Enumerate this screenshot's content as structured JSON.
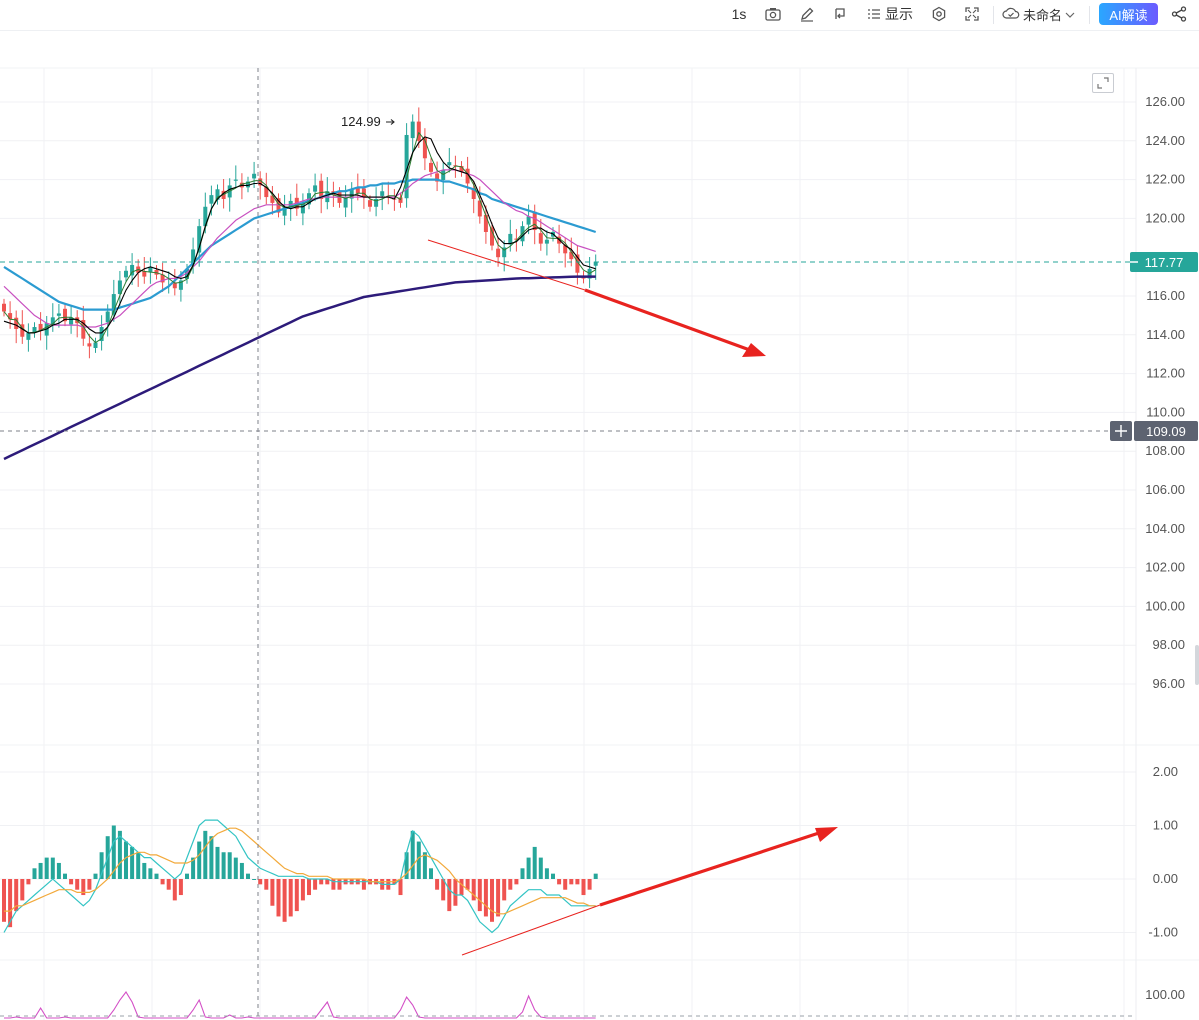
{
  "toolbar": {
    "interval_label": "1s",
    "display_label": "显示",
    "name_label": "未命名",
    "ai_label": "AI解读",
    "icons": [
      "camera-icon",
      "pen-icon",
      "replay-icon",
      "list-icon",
      "gear-icon",
      "fullscreen-icon",
      "cloud-icon",
      "chevron-down-icon",
      "share-icon"
    ]
  },
  "price_axis": {
    "ticks": [
      "126.00",
      "124.00",
      "122.00",
      "120.00",
      "116.00",
      "114.00",
      "112.00",
      "110.00",
      "108.00",
      "106.00",
      "104.00",
      "102.00",
      "100.00",
      "98.00",
      "96.00"
    ],
    "tick_values": [
      126,
      124,
      122,
      120,
      116,
      114,
      112,
      110,
      108,
      106,
      104,
      102,
      100,
      98,
      96
    ],
    "current_price": "117.77",
    "crosshair_price": "109.09",
    "high_marker": "124.99"
  },
  "macd_axis": {
    "ticks": [
      "2.00",
      "1.00",
      "0.00",
      "-1.00"
    ],
    "tick_values": [
      2,
      1,
      0,
      -1
    ]
  },
  "third_axis": {
    "ticks": [
      "100.00"
    ]
  },
  "colors": {
    "up": "#26a69a",
    "down": "#ef5350",
    "ma5": "#000000",
    "ma10": "#2e7d32",
    "ma20": "#c850c0",
    "ma60": "#2b9bd1",
    "ma250": "#2d1b7a",
    "dif": "#33c4c4",
    "dea": "#f2a93b",
    "annotation": "#e8231f",
    "current_line": "#26a69a",
    "crosshair": "#7d808a"
  },
  "chart_data": {
    "type": "candlestick",
    "price_range": [
      94,
      127
    ],
    "macd_range": [
      -1.5,
      2.5
    ],
    "closes": [
      115.2,
      114.8,
      114.3,
      113.9,
      114.1,
      114.4,
      114.2,
      114.6,
      114.9,
      115.1,
      114.7,
      114.9,
      114.6,
      113.8,
      113.4,
      113.6,
      114.4,
      115.2,
      116.1,
      116.8,
      117.3,
      117.6,
      117.2,
      117.0,
      117.5,
      117.1,
      116.7,
      116.9,
      116.4,
      116.8,
      117.4,
      118.4,
      119.6,
      120.6,
      121.2,
      121.5,
      121.0,
      121.7,
      122.0,
      121.6,
      121.9,
      122.3,
      121.7,
      121.1,
      120.8,
      120.3,
      120.6,
      120.9,
      120.5,
      120.8,
      121.3,
      121.7,
      121.0,
      121.4,
      121.2,
      120.8,
      121.1,
      121.5,
      121.3,
      121.1,
      120.6,
      121.0,
      121.4,
      121.1,
      121.0,
      120.8,
      124.3,
      124.99,
      124.0,
      123.1,
      122.4,
      121.9,
      122.5,
      122.9,
      122.7,
      122.4,
      121.8,
      121.0,
      120.1,
      119.3,
      118.6,
      118.0,
      118.5,
      119.2,
      118.9,
      119.6,
      120.1,
      119.4,
      118.7,
      118.9,
      119.3,
      118.7,
      118.2,
      117.9,
      117.2,
      116.9,
      117.4,
      117.77
    ],
    "ma5": [
      114.7,
      114.6,
      114.5,
      114.3,
      114.1,
      114.1,
      114.2,
      114.3,
      114.5,
      114.6,
      114.8,
      114.8,
      114.8,
      114.6,
      114.3,
      114.1,
      114.1,
      114.4,
      114.9,
      115.6,
      116.3,
      116.8,
      117.2,
      117.4,
      117.5,
      117.4,
      117.3,
      117.2,
      117.0,
      116.9,
      117.0,
      117.6,
      118.5,
      119.6,
      120.5,
      121.0,
      121.3,
      121.5,
      121.6,
      121.7,
      121.7,
      121.8,
      121.8,
      121.6,
      121.3,
      120.9,
      120.6,
      120.5,
      120.6,
      120.6,
      120.8,
      121.0,
      121.1,
      121.2,
      121.3,
      121.2,
      121.2,
      121.2,
      121.2,
      121.1,
      121.1,
      121.1,
      121.1,
      121.1,
      121.0,
      121.6,
      122.5,
      123.4,
      123.9,
      124.2,
      124.1,
      123.4,
      122.9,
      122.6,
      122.5,
      122.4,
      122.3,
      121.9,
      121.2,
      120.5,
      119.7,
      119.0,
      118.7,
      118.7,
      118.8,
      119.1,
      119.4,
      119.5,
      119.5,
      119.3,
      119.2,
      118.9,
      118.6,
      118.4,
      118.0,
      117.6,
      117.5,
      117.4
    ],
    "ma20": [
      116.5,
      116.2,
      115.9,
      115.6,
      115.3,
      115.0,
      114.8,
      114.6,
      114.5,
      114.5,
      114.5,
      114.5,
      114.5,
      114.4,
      114.4,
      114.4,
      114.5,
      114.6,
      114.8,
      115.0,
      115.3,
      115.6,
      115.9,
      116.2,
      116.5,
      116.7,
      116.8,
      116.9,
      116.9,
      117.0,
      117.2,
      117.5,
      117.8,
      118.2,
      118.6,
      119.0,
      119.3,
      119.6,
      119.9,
      120.1,
      120.3,
      120.5,
      120.6,
      120.7,
      120.7,
      120.7,
      120.7,
      120.7,
      120.8,
      120.9,
      121.0,
      121.0,
      121.1,
      121.1,
      121.1,
      121.1,
      121.1,
      121.1,
      121.1,
      121.1,
      121.1,
      121.1,
      121.1,
      121.1,
      121.1,
      121.3,
      121.5,
      121.8,
      122.0,
      122.2,
      122.3,
      122.4,
      122.5,
      122.5,
      122.5,
      122.4,
      122.3,
      122.2,
      122.0,
      121.7,
      121.4,
      121.1,
      120.8,
      120.6,
      120.4,
      120.3,
      120.1,
      120.0,
      119.8,
      119.6,
      119.4,
      119.2,
      119.0,
      118.8,
      118.6,
      118.5,
      118.4,
      118.3
    ],
    "ma60": [
      117.5,
      117.3,
      117.1,
      116.9,
      116.7,
      116.5,
      116.3,
      116.1,
      115.9,
      115.7,
      115.6,
      115.5,
      115.4,
      115.3,
      115.3,
      115.3,
      115.3,
      115.3,
      115.3,
      115.4,
      115.5,
      115.6,
      115.7,
      115.8,
      115.9,
      116.1,
      116.3,
      116.5,
      116.8,
      117.1,
      117.4,
      117.7,
      118.0,
      118.3,
      118.6,
      118.8,
      119.0,
      119.2,
      119.4,
      119.6,
      119.8,
      120.0,
      120.1,
      120.2,
      120.3,
      120.4,
      120.5,
      120.6,
      120.7,
      120.8,
      120.9,
      121.0,
      121.1,
      121.2,
      121.3,
      121.4,
      121.4,
      121.5,
      121.6,
      121.6,
      121.7,
      121.7,
      121.8,
      121.8,
      121.8,
      121.9,
      121.9,
      122.0,
      122.0,
      122.0,
      122.0,
      122.0,
      121.9,
      121.9,
      121.8,
      121.7,
      121.6,
      121.5,
      121.3,
      121.2,
      121.0,
      120.9,
      120.8,
      120.7,
      120.6,
      120.5,
      120.4,
      120.3,
      120.2,
      120.1,
      120.0,
      119.9,
      119.8,
      119.7,
      119.6,
      119.5,
      119.4,
      119.3
    ],
    "ma250": [
      107.6,
      107.75,
      107.9,
      108.05,
      108.2,
      108.35,
      108.5,
      108.65,
      108.8,
      108.95,
      109.1,
      109.25,
      109.4,
      109.55,
      109.7,
      109.85,
      110.0,
      110.15,
      110.3,
      110.45,
      110.6,
      110.75,
      110.9,
      111.05,
      111.2,
      111.35,
      111.5,
      111.65,
      111.8,
      111.95,
      112.1,
      112.25,
      112.4,
      112.55,
      112.7,
      112.85,
      113.0,
      113.15,
      113.3,
      113.45,
      113.6,
      113.75,
      113.9,
      114.05,
      114.2,
      114.35,
      114.5,
      114.65,
      114.8,
      114.95,
      115.05,
      115.15,
      115.25,
      115.35,
      115.45,
      115.55,
      115.65,
      115.75,
      115.85,
      115.95,
      116.0,
      116.05,
      116.1,
      116.15,
      116.2,
      116.25,
      116.3,
      116.35,
      116.4,
      116.45,
      116.5,
      116.55,
      116.6,
      116.65,
      116.7,
      116.72,
      116.74,
      116.76,
      116.78,
      116.8,
      116.82,
      116.84,
      116.86,
      116.88,
      116.9,
      116.91,
      116.92,
      116.93,
      116.94,
      116.95,
      116.96,
      116.97,
      116.98,
      116.99,
      117.0,
      117.0,
      117.0,
      117.0
    ],
    "macd_hist": [
      -0.8,
      -0.9,
      -0.6,
      -0.4,
      -0.1,
      0.2,
      0.3,
      0.4,
      0.4,
      0.3,
      0.1,
      -0.1,
      -0.2,
      -0.3,
      -0.2,
      0.1,
      0.5,
      0.8,
      1.0,
      0.9,
      0.7,
      0.6,
      0.5,
      0.3,
      0.2,
      0.1,
      -0.1,
      -0.2,
      -0.4,
      -0.3,
      0.1,
      0.4,
      0.7,
      0.9,
      0.8,
      0.6,
      0.5,
      0.5,
      0.4,
      0.3,
      0.1,
      0.0,
      -0.1,
      -0.2,
      -0.5,
      -0.7,
      -0.8,
      -0.7,
      -0.6,
      -0.4,
      -0.3,
      -0.2,
      -0.1,
      -0.1,
      -0.2,
      -0.2,
      -0.1,
      -0.1,
      -0.1,
      -0.2,
      -0.1,
      -0.1,
      -0.2,
      -0.2,
      -0.1,
      -0.3,
      0.5,
      0.9,
      0.7,
      0.5,
      0.2,
      -0.2,
      -0.4,
      -0.6,
      -0.5,
      -0.3,
      -0.2,
      -0.4,
      -0.6,
      -0.7,
      -0.8,
      -0.7,
      -0.4,
      -0.2,
      -0.1,
      0.2,
      0.4,
      0.6,
      0.4,
      0.2,
      0.1,
      -0.1,
      -0.2,
      -0.1,
      -0.1,
      -0.3,
      -0.2,
      0.1
    ],
    "dif": [
      -1.0,
      -0.8,
      -0.6,
      -0.5,
      -0.4,
      -0.3,
      -0.2,
      -0.1,
      0.0,
      -0.1,
      -0.2,
      -0.3,
      -0.4,
      -0.5,
      -0.4,
      -0.2,
      0.1,
      0.4,
      0.7,
      0.8,
      0.7,
      0.6,
      0.5,
      0.4,
      0.4,
      0.3,
      0.2,
      0.1,
      0.0,
      0.1,
      0.4,
      0.7,
      1.0,
      1.1,
      1.1,
      1.1,
      1.0,
      0.9,
      0.8,
      0.6,
      0.4,
      0.3,
      0.2,
      0.15,
      0.1,
      0.05,
      0.05,
      0.05,
      0.05,
      0.05,
      0.0,
      0.0,
      0.0,
      0.0,
      -0.05,
      -0.05,
      -0.05,
      -0.05,
      -0.05,
      -0.05,
      -0.05,
      -0.05,
      -0.1,
      -0.1,
      -0.1,
      0.0,
      0.5,
      0.9,
      0.8,
      0.6,
      0.4,
      0.2,
      0.0,
      -0.2,
      -0.3,
      -0.3,
      -0.4,
      -0.6,
      -0.8,
      -0.9,
      -1.0,
      -0.9,
      -0.7,
      -0.5,
      -0.4,
      -0.3,
      -0.2,
      -0.2,
      -0.2,
      -0.3,
      -0.3,
      -0.3,
      -0.4,
      -0.5,
      -0.5,
      -0.5,
      -0.5,
      -0.5
    ],
    "dea": [
      -0.6,
      -0.6,
      -0.5,
      -0.5,
      -0.45,
      -0.4,
      -0.35,
      -0.3,
      -0.25,
      -0.2,
      -0.2,
      -0.2,
      -0.25,
      -0.25,
      -0.25,
      -0.2,
      -0.1,
      0.0,
      0.15,
      0.3,
      0.4,
      0.45,
      0.5,
      0.5,
      0.45,
      0.45,
      0.4,
      0.35,
      0.3,
      0.3,
      0.3,
      0.35,
      0.45,
      0.6,
      0.75,
      0.85,
      0.9,
      0.95,
      0.95,
      0.9,
      0.8,
      0.7,
      0.6,
      0.5,
      0.4,
      0.3,
      0.2,
      0.15,
      0.1,
      0.1,
      0.05,
      0.05,
      0.05,
      0.05,
      0.0,
      0.0,
      0.0,
      0.0,
      0.0,
      0.0,
      -0.05,
      -0.05,
      -0.05,
      -0.05,
      -0.05,
      0.0,
      0.1,
      0.25,
      0.4,
      0.45,
      0.4,
      0.35,
      0.25,
      0.15,
      0.0,
      -0.1,
      -0.2,
      -0.3,
      -0.4,
      -0.5,
      -0.6,
      -0.65,
      -0.65,
      -0.6,
      -0.55,
      -0.5,
      -0.45,
      -0.4,
      -0.35,
      -0.35,
      -0.35,
      -0.35,
      -0.35,
      -0.4,
      -0.45,
      -0.45,
      -0.5,
      -0.5
    ]
  }
}
